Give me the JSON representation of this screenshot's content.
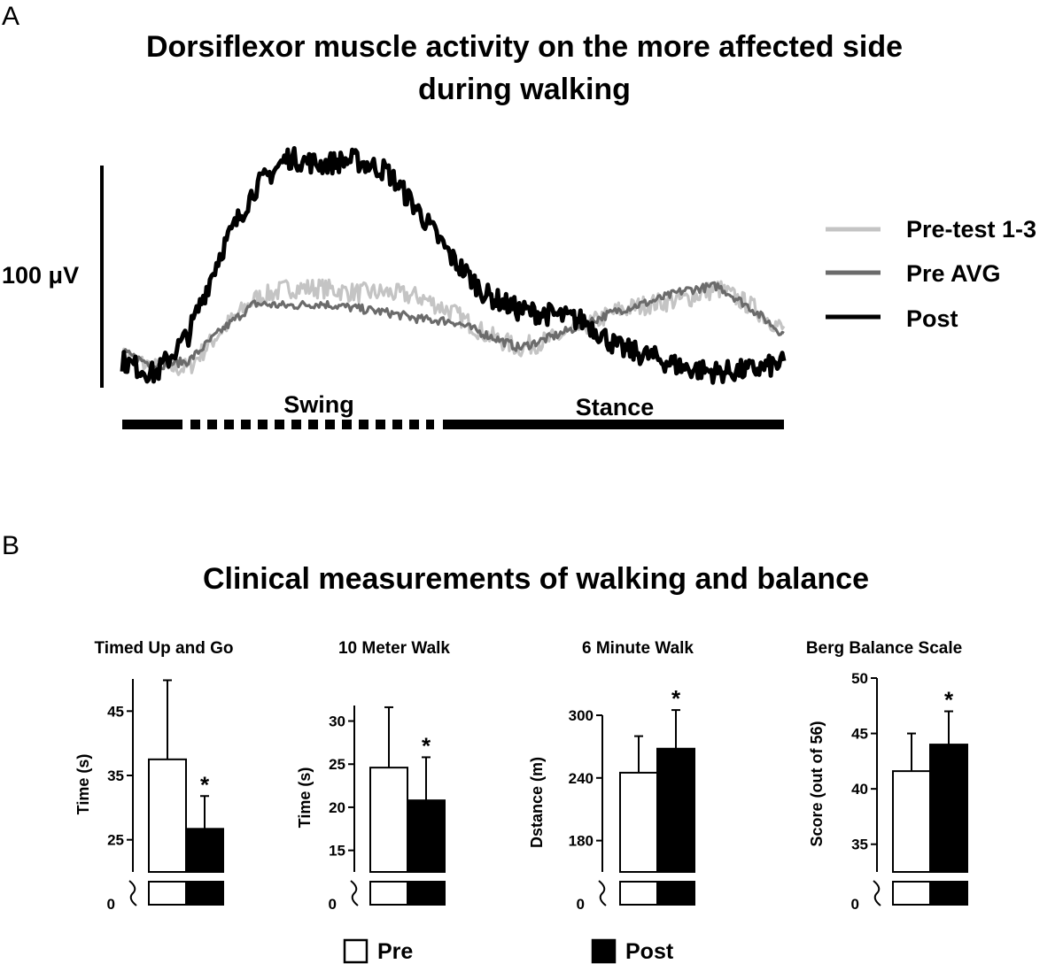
{
  "panel_a": {
    "letter": "A",
    "title_line1": "Dorsiflexor muscle activity on the more affected side",
    "title_line2": "during walking",
    "scale_label": "100 μV",
    "phase_swing": "Swing",
    "phase_stance": "Stance",
    "legend": [
      {
        "label": "Pre-test 1-3",
        "color": "#c4c4c4"
      },
      {
        "label": "Pre AVG",
        "color": "#6b6b6b"
      },
      {
        "label": "Post",
        "color": "#000000"
      }
    ]
  },
  "panel_b": {
    "letter": "B",
    "title": "Clinical measurements of walking and balance",
    "legend": [
      {
        "label": "Pre",
        "fill": "#ffffff"
      },
      {
        "label": "Post",
        "fill": "#000000"
      }
    ]
  },
  "chart_data": [
    {
      "type": "line",
      "title": "Dorsiflexor muscle activity on the more affected side during walking",
      "xlabel": "",
      "ylabel": "100 μV",
      "x": [
        0,
        5,
        10,
        15,
        20,
        25,
        30,
        35,
        40,
        45,
        50,
        55,
        60,
        65,
        70,
        75,
        80,
        85,
        90,
        95,
        100
      ],
      "series": [
        {
          "name": "Pre-test 1-3",
          "color": "#c4c4c4",
          "values": [
            14,
            9,
            9,
            26,
            40,
            45,
            45,
            43,
            43,
            41,
            34,
            24,
            18,
            22,
            28,
            35,
            38,
            40,
            45,
            37,
            26
          ]
        },
        {
          "name": "Pre AVG",
          "color": "#6b6b6b",
          "values": [
            16,
            10,
            12,
            26,
            38,
            37,
            38,
            36,
            34,
            31,
            30,
            24,
            18,
            23,
            29,
            35,
            39,
            44,
            46,
            36,
            24
          ]
        },
        {
          "name": "Post",
          "color": "#000000",
          "values": [
            12,
            6,
            24,
            62,
            90,
            104,
            101,
            103,
            98,
            79,
            58,
            42,
            35,
            33,
            30,
            18,
            14,
            9,
            7,
            8,
            11
          ]
        }
      ]
    },
    {
      "type": "bar",
      "title": "Timed Up and Go",
      "ylabel": "Time (s)",
      "categories": [
        "Pre",
        "Post"
      ],
      "values": [
        37.5,
        26.7
      ],
      "errors": [
        12.3,
        5.1
      ],
      "significant": [
        false,
        true
      ],
      "significance_mark": "*",
      "yticks": [
        25,
        35,
        45
      ],
      "ylim": [
        20,
        50
      ],
      "axis_break_value": 0
    },
    {
      "type": "bar",
      "title": "10 Meter Walk",
      "ylabel": "Time (s)",
      "categories": [
        "Pre",
        "Post"
      ],
      "values": [
        24.6,
        20.8
      ],
      "errors": [
        7.0,
        5.0
      ],
      "significant": [
        false,
        true
      ],
      "significance_mark": "*",
      "yticks": [
        15,
        20,
        25,
        30
      ],
      "ylim": [
        12.5,
        31.8
      ],
      "axis_break_value": 0
    },
    {
      "type": "bar",
      "title": "6 Minute Walk",
      "ylabel": "Dstance (m)",
      "categories": [
        "Pre",
        "Post"
      ],
      "values": [
        245,
        268
      ],
      "errors": [
        35,
        37
      ],
      "significant": [
        false,
        true
      ],
      "significance_mark": "*",
      "yticks": [
        180,
        240,
        300
      ],
      "ylim": [
        150,
        300
      ],
      "axis_break_value": 0
    },
    {
      "type": "bar",
      "title": "Berg Balance Scale",
      "ylabel": "Score (out of 56)",
      "categories": [
        "Pre",
        "Post"
      ],
      "values": [
        41.6,
        44.0
      ],
      "errors": [
        3.4,
        3.0
      ],
      "significant": [
        false,
        true
      ],
      "significance_mark": "*",
      "yticks": [
        35,
        40,
        45,
        50
      ],
      "ylim": [
        32.5,
        50
      ],
      "axis_break_value": 0
    }
  ]
}
